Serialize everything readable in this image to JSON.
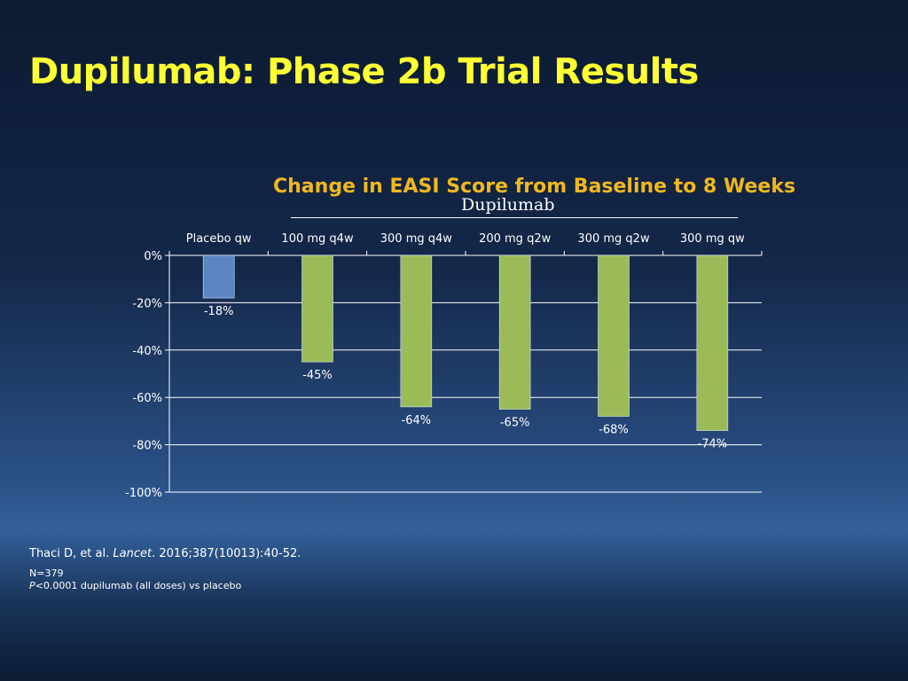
{
  "slide": {
    "title": "Dupilumab: Phase 2b Trial Results",
    "group_label": "Dupilumab",
    "citation": {
      "authors": "Thaci D, et al.",
      "journal": "Lancet",
      "details": "2016;387(10013):40-52."
    },
    "notes": {
      "n": "N=379",
      "p_letter": "P",
      "p_rest": "<0.0001 dupilumab (all doses) vs placebo"
    }
  },
  "chart_data": {
    "type": "bar",
    "title": "Change in EASI Score from Baseline to 8 Weeks",
    "categories": [
      "Placebo qw",
      "100 mg q4w",
      "300 mg q4w",
      "200 mg q2w",
      "300 mg q2w",
      "300 mg qw"
    ],
    "values": [
      -18,
      -45,
      -64,
      -65,
      -68,
      -74
    ],
    "data_labels": [
      "-18%",
      "-45%",
      "-64%",
      "-65%",
      "-68%",
      "-74%"
    ],
    "bar_colors": [
      "#5b86c5",
      "#9bbb59",
      "#9bbb59",
      "#9bbb59",
      "#9bbb59",
      "#9bbb59"
    ],
    "ylim": [
      -100,
      0
    ],
    "yticks": [
      0,
      -20,
      -40,
      -60,
      -80,
      -100
    ],
    "ytick_labels": [
      "0%",
      "-20%",
      "-40%",
      "-60%",
      "-80%",
      "-100%"
    ],
    "x_axis_position": "top",
    "grid": true,
    "xlabel": "",
    "ylabel": ""
  }
}
